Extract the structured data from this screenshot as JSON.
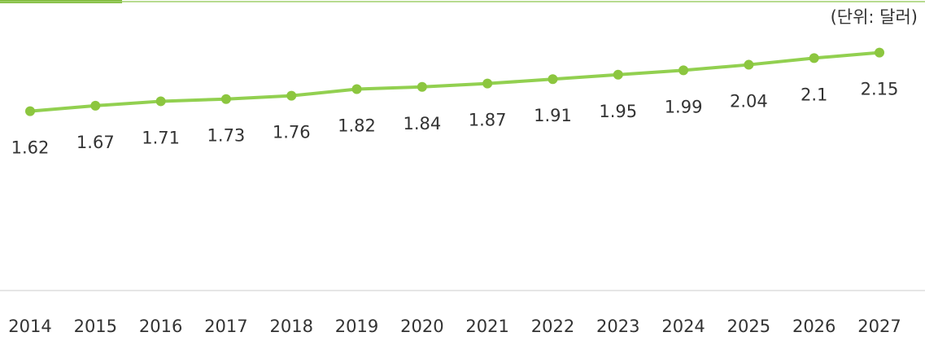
{
  "chart_data": {
    "type": "line",
    "unit": "(단위: 달러)",
    "categories": [
      "2014",
      "2015",
      "2016",
      "2017",
      "2018",
      "2019",
      "2020",
      "2021",
      "2022",
      "2023",
      "2024",
      "2025",
      "2026",
      "2027"
    ],
    "values": [
      1.62,
      1.67,
      1.71,
      1.73,
      1.76,
      1.82,
      1.84,
      1.87,
      1.91,
      1.95,
      1.99,
      2.04,
      2.1,
      2.15
    ],
    "color": "#92d050",
    "ylim": [
      0,
      2.5
    ]
  }
}
